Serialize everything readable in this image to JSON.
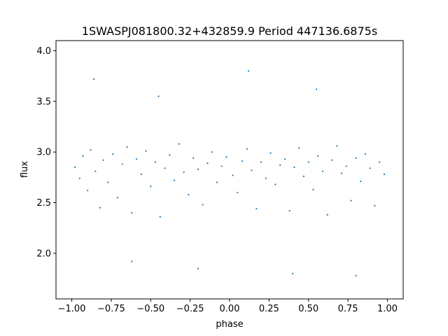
{
  "chart_data": {
    "type": "scatter",
    "title": "1SWASPJ081800.32+432859.9 Period 447136.6875s",
    "xlabel": "phase",
    "ylabel": "flux",
    "xlim": [
      -1.1,
      1.1
    ],
    "ylim": [
      1.55,
      4.1
    ],
    "x_ticks": [
      -1.0,
      -0.75,
      -0.5,
      -0.25,
      0.0,
      0.25,
      0.5,
      0.75,
      1.0
    ],
    "x_tick_labels": [
      "−1.00",
      "−0.75",
      "−0.50",
      "−0.25",
      "0.00",
      "0.25",
      "0.50",
      "0.75",
      "1.00"
    ],
    "y_ticks": [
      2.0,
      2.5,
      3.0,
      3.5,
      4.0
    ],
    "y_tick_labels": [
      "2.0",
      "2.5",
      "3.0",
      "3.5",
      "4.0"
    ],
    "grid": false,
    "legend": "none",
    "series": [
      {
        "marker_color": "#1f77b4",
        "points": [
          [
            -0.98,
            2.85
          ],
          [
            -0.95,
            2.74
          ],
          [
            -0.93,
            2.96
          ],
          [
            -0.9,
            2.62
          ],
          [
            -0.88,
            3.02
          ],
          [
            -0.85,
            2.81
          ],
          [
            -0.82,
            2.45
          ],
          [
            -0.8,
            2.92
          ],
          [
            -0.77,
            2.7
          ],
          [
            -0.74,
            2.98
          ],
          [
            -0.71,
            2.55
          ],
          [
            -0.68,
            2.88
          ],
          [
            -0.65,
            3.05
          ],
          [
            -0.62,
            2.4
          ],
          [
            -0.59,
            2.93
          ],
          [
            -0.56,
            2.78
          ],
          [
            -0.53,
            3.01
          ],
          [
            -0.5,
            2.66
          ],
          [
            -0.47,
            2.9
          ],
          [
            -0.44,
            2.36
          ],
          [
            -0.41,
            2.84
          ],
          [
            -0.38,
            2.97
          ],
          [
            -0.35,
            2.72
          ],
          [
            -0.32,
            3.08
          ],
          [
            -0.29,
            2.8
          ],
          [
            -0.26,
            2.58
          ],
          [
            -0.23,
            2.94
          ],
          [
            -0.2,
            2.83
          ],
          [
            -0.17,
            2.48
          ],
          [
            -0.14,
            2.89
          ],
          [
            -0.11,
            3.0
          ],
          [
            -0.08,
            2.7
          ],
          [
            -0.05,
            2.86
          ],
          [
            -0.02,
            2.95
          ],
          [
            0.02,
            2.77
          ],
          [
            0.05,
            2.6
          ],
          [
            0.08,
            2.91
          ],
          [
            0.11,
            3.03
          ],
          [
            0.14,
            2.82
          ],
          [
            0.17,
            2.44
          ],
          [
            0.2,
            2.9
          ],
          [
            0.23,
            2.74
          ],
          [
            0.26,
            2.99
          ],
          [
            0.29,
            2.68
          ],
          [
            0.32,
            2.87
          ],
          [
            0.35,
            2.93
          ],
          [
            0.38,
            2.42
          ],
          [
            0.41,
            2.85
          ],
          [
            0.44,
            3.04
          ],
          [
            0.47,
            2.76
          ],
          [
            0.5,
            2.9
          ],
          [
            0.53,
            2.63
          ],
          [
            0.56,
            2.96
          ],
          [
            0.59,
            2.81
          ],
          [
            0.62,
            2.38
          ],
          [
            0.65,
            2.92
          ],
          [
            0.68,
            3.06
          ],
          [
            0.71,
            2.79
          ],
          [
            0.74,
            2.86
          ],
          [
            0.77,
            2.52
          ],
          [
            0.8,
            2.94
          ],
          [
            0.83,
            2.71
          ],
          [
            0.86,
            2.98
          ],
          [
            0.89,
            2.84
          ],
          [
            0.92,
            2.47
          ],
          [
            0.95,
            2.9
          ],
          [
            0.98,
            2.78
          ],
          [
            -0.86,
            3.72
          ],
          [
            -0.45,
            3.55
          ],
          [
            0.12,
            3.8
          ],
          [
            0.55,
            3.62
          ],
          [
            -0.2,
            1.85
          ],
          [
            0.4,
            1.8
          ],
          [
            -0.62,
            1.92
          ],
          [
            0.8,
            1.78
          ]
        ]
      }
    ]
  }
}
